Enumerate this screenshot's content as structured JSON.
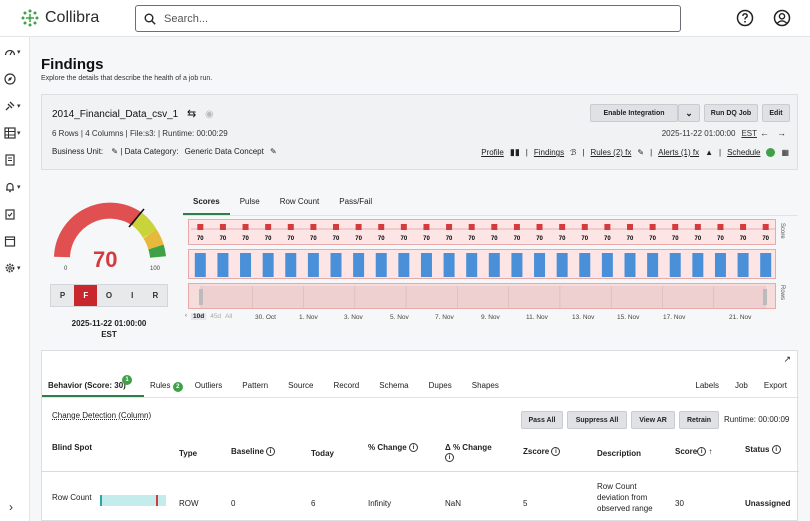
{
  "app": {
    "brand": "Collibra"
  },
  "search": {
    "placeholder": "Search..."
  },
  "page": {
    "title": "Findings",
    "subtitle": "Explore the details that describe the health of a job run."
  },
  "job": {
    "name": "2014_Financial_Data_csv_1",
    "meta": "6 Rows | 4 Columns | File:s3: | Runtime: 00:00:29",
    "business_unit_label": "Business Unit:",
    "data_category_label": "| Data Category:",
    "data_category_value": "Generic Data Concept",
    "run_date": "2025-11-22 01:00:00",
    "timezone": "EST",
    "buttons": {
      "enable_integration": "Enable Integration",
      "run_dq_job": "Run DQ Job",
      "edit": "Edit"
    },
    "links": {
      "profile": "Profile",
      "findings": "Findings",
      "rules": "Rules (2) fx",
      "alerts": "Alerts (1) fx",
      "schedule": "Schedule"
    }
  },
  "gauge": {
    "score": 70,
    "min_label": "0",
    "max_label": "100",
    "date": "2025-11-22 01:00:00",
    "tz": "EST",
    "tabs": [
      "P",
      "F",
      "O",
      "I",
      "R"
    ],
    "active_tab": "F"
  },
  "chart_tabs": [
    "Scores",
    "Pulse",
    "Row Count",
    "Pass/Fail"
  ],
  "chart_data": {
    "type": "bar",
    "score_values": [
      70,
      70,
      70,
      70,
      70,
      70,
      70,
      70,
      70,
      70,
      70,
      70,
      70,
      70,
      70,
      70,
      70,
      70,
      70,
      70,
      70,
      70,
      70,
      70,
      70,
      70
    ],
    "side_labels": {
      "scores": "Score",
      "rows": "Rows"
    },
    "ranges": [
      "10d",
      "45d",
      "All"
    ],
    "active_range": "10d",
    "date_ticks": [
      "30. Oct",
      "1. Nov",
      "3. Nov",
      "5. Nov",
      "7. Nov",
      "9. Nov",
      "11. Nov",
      "13. Nov",
      "15. Nov",
      "17. Nov",
      "21. Nov"
    ]
  },
  "findings": {
    "tabs": [
      {
        "label": "Behavior (Score: 30)",
        "badge": "1"
      },
      {
        "label": "Rules",
        "badge": "2"
      },
      {
        "label": "Outliers"
      },
      {
        "label": "Pattern"
      },
      {
        "label": "Source"
      },
      {
        "label": "Record"
      },
      {
        "label": "Schema"
      },
      {
        "label": "Dupes"
      },
      {
        "label": "Shapes"
      }
    ],
    "right_tabs": [
      "Labels",
      "Job",
      "Export"
    ],
    "section_title": "Change Detection (Column)",
    "buttons": {
      "pass_all": "Pass All",
      "suppress_all": "Suppress All",
      "view_ar": "View AR",
      "retrain": "Retrain"
    },
    "runtime": "Runtime: 00:00:09",
    "columns": [
      "Blind Spot",
      "Type",
      "Baseline",
      "Today",
      "% Change",
      "Δ % Change",
      "Zscore",
      "Description",
      "Score",
      "Status"
    ],
    "rows": [
      {
        "blind_spot": "Row Count",
        "type": "ROW",
        "baseline": "0",
        "today": "6",
        "pct_change": "Infinity",
        "delta_pct_change": "NaN",
        "zscore": "5",
        "description": "Row Count deviation from observed range",
        "score": "30",
        "status": "Unassigned"
      }
    ]
  },
  "colors": {
    "accent_green": "#2f7d4a",
    "danger_red": "#c8272d",
    "badge_green": "#3fa047"
  }
}
